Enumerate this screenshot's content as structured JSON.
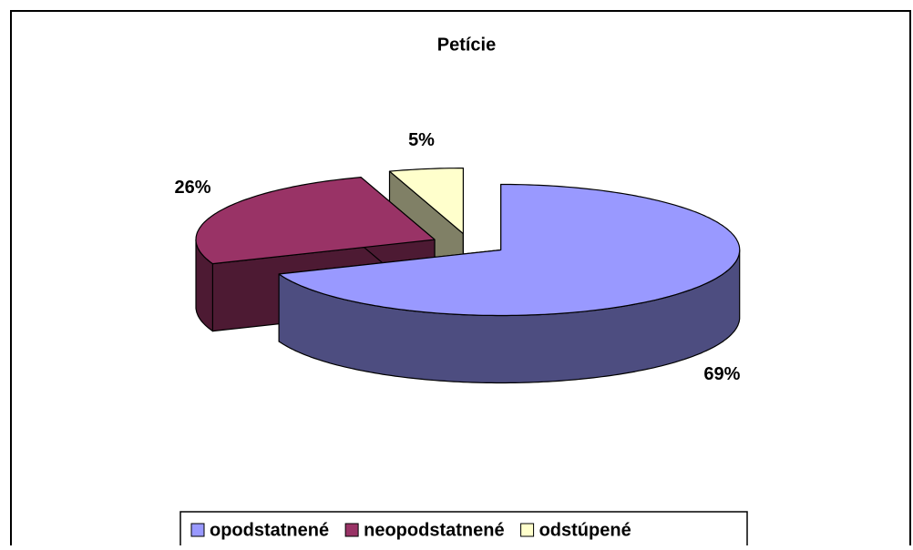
{
  "chart_data": {
    "type": "pie3d",
    "title": "Petície",
    "categories": [
      "opodstatnené",
      "neopodstatnené",
      "odstúpené"
    ],
    "values": [
      69,
      26,
      5
    ],
    "value_labels": [
      "69%",
      "26%",
      "5%"
    ],
    "colors": [
      "#9999ff",
      "#993366",
      "#ffffcc"
    ],
    "legend": "bottom"
  }
}
